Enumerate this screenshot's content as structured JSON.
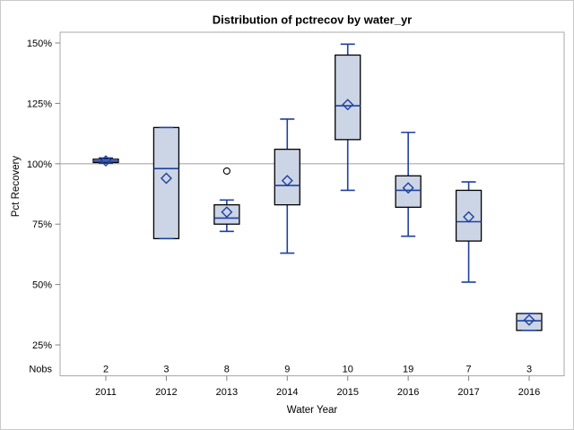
{
  "chart_data": {
    "type": "box",
    "title": "Distribution of pctrecov by water_yr",
    "xlabel": "Water Year",
    "ylabel": "Pct Recovery",
    "nobs_label": "Nobs",
    "ylim": [
      12,
      154.5
    ],
    "ref_line": 100,
    "grid": "off",
    "y_ticks": [
      {
        "value": 150,
        "label": "150%"
      },
      {
        "value": 125,
        "label": "125%"
      },
      {
        "value": 100,
        "label": "100%"
      },
      {
        "value": 75,
        "label": "75%"
      },
      {
        "value": 50,
        "label": "50%"
      },
      {
        "value": 25,
        "label": "25%"
      }
    ],
    "categories": [
      "2011",
      "2012",
      "2013",
      "2014",
      "2015",
      "2016",
      "2017",
      "2016"
    ],
    "nobs": [
      "2",
      "3",
      "8",
      "9",
      "10",
      "19",
      "7",
      "3"
    ],
    "boxes": [
      {
        "year": "2011",
        "nobs": "2",
        "low": 100.2,
        "q1": 100.5,
        "median": 101.1,
        "q3": 101.9,
        "high": 102.4,
        "mean": 101.2,
        "outliers": []
      },
      {
        "year": "2012",
        "nobs": "3",
        "low": 69,
        "q1": 69,
        "median": 98,
        "q3": 115,
        "high": 115,
        "mean": 94,
        "outliers": []
      },
      {
        "year": "2013",
        "nobs": "8",
        "low": 72,
        "q1": 75,
        "median": 77.5,
        "q3": 83,
        "high": 85,
        "mean": 80,
        "outliers": [
          97
        ]
      },
      {
        "year": "2014",
        "nobs": "9",
        "low": 63,
        "q1": 83,
        "median": 91,
        "q3": 106,
        "high": 118.5,
        "mean": 93,
        "outliers": []
      },
      {
        "year": "2015",
        "nobs": "10",
        "low": 89,
        "q1": 110,
        "median": 124,
        "q3": 145,
        "high": 149.5,
        "mean": 124.5,
        "outliers": []
      },
      {
        "year": "2016",
        "nobs": "19",
        "low": 70,
        "q1": 82,
        "median": 89,
        "q3": 95,
        "high": 113,
        "mean": 90,
        "outliers": []
      },
      {
        "year": "2017",
        "nobs": "7",
        "low": 51,
        "q1": 68,
        "median": 76,
        "q3": 89,
        "high": 92.5,
        "mean": 78,
        "outliers": []
      },
      {
        "year": "2016",
        "nobs": "3",
        "low": 31,
        "q1": 31,
        "median": 35,
        "q3": 38,
        "high": 38,
        "mean": 35.3,
        "outliers": []
      }
    ],
    "colors": {
      "box_fill": "#ccd5e6",
      "box_border": "#000000",
      "whisker": "#1f419f",
      "median": "#1f419f",
      "mean_marker": "#1f419f",
      "outlier": "#000000",
      "ref_line": "#a8a8a8",
      "frame": "#a8a8a8",
      "tick": "#808080",
      "text": "#000000"
    }
  }
}
